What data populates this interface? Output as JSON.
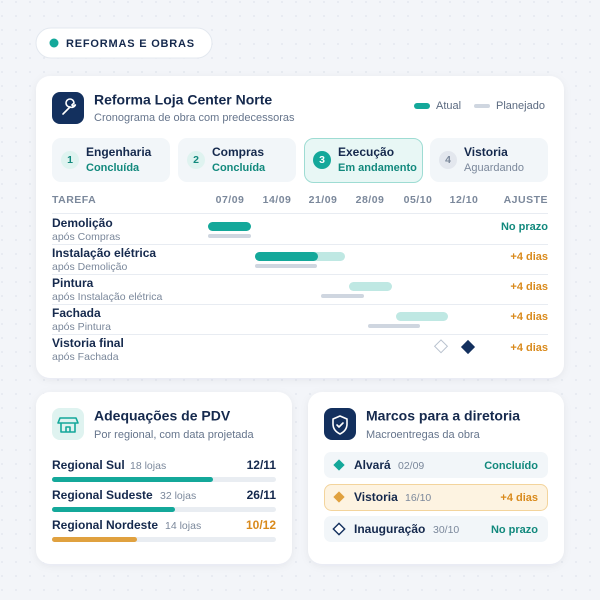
{
  "header": {
    "tag": "REFORMAS E OBRAS"
  },
  "project": {
    "title": "Reforma Loja Center Norte",
    "subtitle": "Cronograma de obra com predecessoras",
    "legend": [
      "Atual",
      "Planejado"
    ],
    "steps": [
      {
        "number": 1,
        "name": "Engenharia",
        "status": "Concluída"
      },
      {
        "number": 2,
        "name": "Compras",
        "status": "Concluída"
      },
      {
        "number": 3,
        "name": "Execução",
        "status": "Em andamento"
      },
      {
        "number": 4,
        "name": "Vistoria",
        "status": "Aguardando"
      }
    ],
    "table": {
      "columns": [
        "TAREFA",
        "07/09",
        "14/09",
        "21/09",
        "28/09",
        "05/10",
        "12/10",
        "AJUSTE"
      ],
      "rows": [
        {
          "task": "Demolição",
          "predecessor": "após Compras",
          "adjustment": "No prazo"
        },
        {
          "task": "Instalação elétrica",
          "predecessor": "após Demolição",
          "adjustment": "+4 dias"
        },
        {
          "task": "Pintura",
          "predecessor": "após Instalação elétrica",
          "adjustment": "+4 dias"
        },
        {
          "task": "Fachada",
          "predecessor": "após Pintura",
          "adjustment": "+4 dias"
        },
        {
          "task": "Vistoria final",
          "predecessor": "após Fachada",
          "adjustment": "+4 dias"
        }
      ]
    }
  },
  "pdv": {
    "title": "Adequações de PDV",
    "subtitle": "Por regional, com data projetada",
    "rows": [
      {
        "name": "Regional Sul",
        "stores": "18 lojas",
        "date": "12/11"
      },
      {
        "name": "Regional Sudeste",
        "stores": "32 lojas",
        "date": "26/11"
      },
      {
        "name": "Regional Nordeste",
        "stores": "14 lojas",
        "date": "10/12"
      }
    ]
  },
  "milestones": {
    "title": "Marcos para a diretoria",
    "subtitle": "Macroentregas da obra",
    "items": [
      {
        "name": "Alvará",
        "date": "02/09",
        "status": "Concluído"
      },
      {
        "name": "Vistoria",
        "date": "16/10",
        "status": "+4 dias"
      },
      {
        "name": "Inauguração",
        "date": "30/10",
        "status": "No prazo"
      }
    ]
  }
}
